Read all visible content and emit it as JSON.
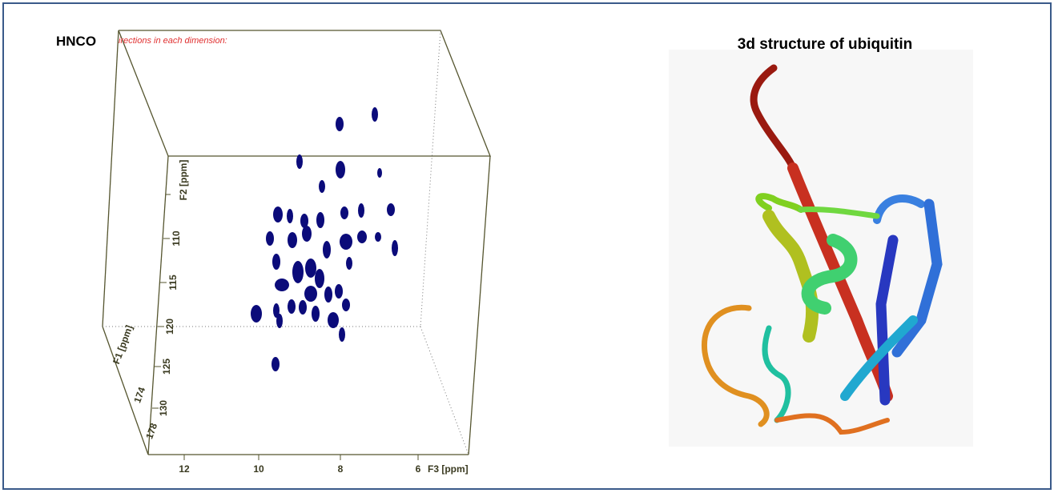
{
  "left_panel": {
    "title": "HNCO",
    "note": "irections in each dimension:",
    "f2_label": "F2 [ppm]",
    "f2_ticks": [
      "110",
      "115",
      "120",
      "125",
      "130"
    ],
    "f1_label": "F1 [ppm]",
    "f1_ticks": [
      "174",
      "178"
    ],
    "f3_ticks": [
      "12",
      "10",
      "8",
      "6"
    ],
    "f3_label": "F3 [ppm]"
  },
  "right_panel": {
    "title": "3d structure of ubiquitin"
  }
}
